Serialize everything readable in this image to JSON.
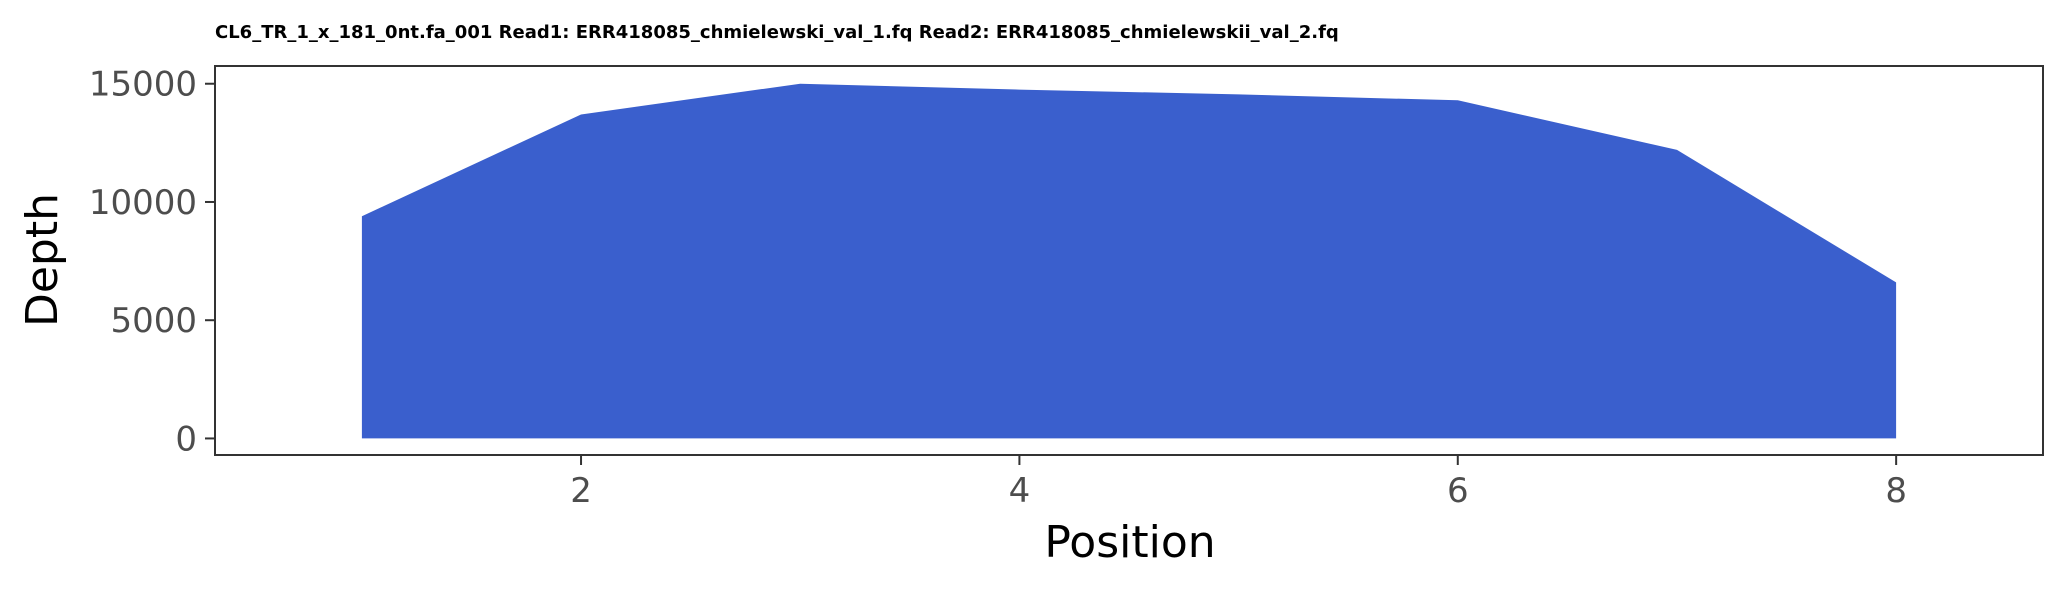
{
  "chart_data": {
    "type": "area",
    "title": "CL6_TR_1_x_181_0nt.fa_001 Read1: ERR418085_chmielewski_val_1.fq Read2: ERR418085_chmielewskii_val_2.fq",
    "xlabel": "Position",
    "ylabel": "Depth",
    "x": [
      1,
      2,
      3,
      4,
      5,
      6,
      7,
      8
    ],
    "series": [
      {
        "values": [
          9400,
          13700,
          15000,
          14750,
          14550,
          14300,
          12200,
          6600
        ]
      }
    ],
    "xlim": [
      0.33,
      8.67
    ],
    "ylim": [
      -700,
      15750
    ],
    "xticks": [
      2,
      4,
      6,
      8
    ],
    "yticks": [
      0,
      5000,
      10000,
      15000
    ],
    "grid": false,
    "fill_color": "#3a5fcd",
    "frame_color": "#333333"
  }
}
